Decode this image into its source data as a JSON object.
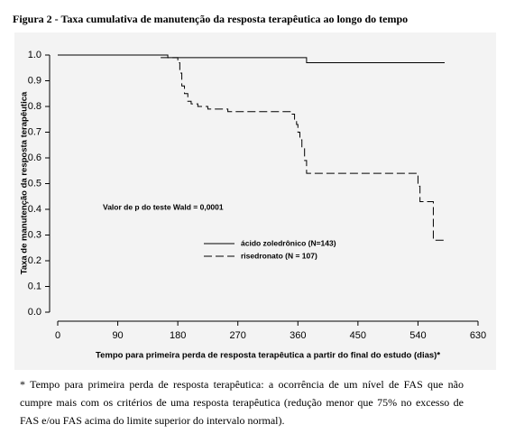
{
  "chart_data": {
    "type": "step",
    "title": "Figura 2 - Taxa cumulativa de manutenção da resposta terapêutica ao longo do tempo",
    "x_label": "Tempo para primeira perda de resposta terapêutica a partir do final do estudo (dias)*",
    "y_label": "Taxa de manutenção da resposta terapêutica",
    "annotation": "Valor de p do teste Wald = 0,0001",
    "xlim": [
      0,
      630
    ],
    "xticks": [
      0,
      90,
      180,
      270,
      360,
      450,
      540,
      630
    ],
    "ylim": [
      0,
      1
    ],
    "yticks": [
      {
        "value": 0,
        "label": "0.0"
      },
      0.1,
      0.2,
      0.3,
      0.4,
      0.5,
      0.6,
      0.7,
      0.8,
      0.9,
      {
        "value": 1,
        "label": "1.0"
      }
    ],
    "series": [
      {
        "name": "ácido zoledrônico (N=143)",
        "color": "#000000",
        "dash": "solid",
        "x": [
          0,
          165,
          373,
          580
        ],
        "values": [
          1.0,
          0.99,
          0.97,
          0.97
        ]
      },
      {
        "name": "risedronato (N = 107)",
        "color": "#000000",
        "dash": "dashed",
        "x": [
          0,
          155,
          180,
          183,
          186,
          190,
          195,
          200,
          210,
          225,
          255,
          350,
          355,
          358,
          360,
          363,
          366,
          370,
          373,
          540,
          543,
          550,
          563,
          580
        ],
        "values": [
          1.0,
          0.99,
          0.97,
          0.93,
          0.88,
          0.85,
          0.82,
          0.81,
          0.8,
          0.79,
          0.78,
          0.77,
          0.75,
          0.73,
          0.7,
          0.67,
          0.64,
          0.59,
          0.54,
          0.49,
          0.43,
          0.43,
          0.28,
          0.28
        ]
      }
    ]
  },
  "footnote": "* Tempo para primeira perda de resposta terapêutica: a ocorrência de um nível de FAS que não cumpre mais com os critérios de uma resposta terapêutica (redução menor que 75% no excesso de FAS e/ou FAS acima do limite superior do intervalo normal)."
}
